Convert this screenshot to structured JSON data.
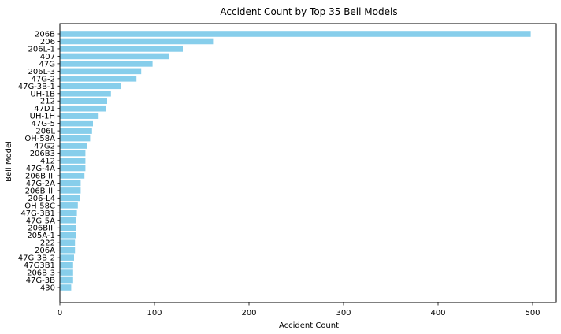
{
  "chart_data": {
    "type": "bar",
    "orientation": "horizontal",
    "title": "Accident Count by Top 35 Bell Models",
    "xlabel": "Accident Count",
    "ylabel": "Bell Model",
    "xlim": [
      0,
      525
    ],
    "xticks": [
      0,
      100,
      200,
      300,
      400,
      500
    ],
    "bar_color": "#87ceeb",
    "grid": false,
    "categories": [
      "206B",
      "206",
      "206L-1",
      "407",
      "47G",
      "206L-3",
      "47G-2",
      "47G-3B-1",
      "UH-1B",
      "212",
      "47D1",
      "UH-1H",
      "47G-5",
      "206L",
      "OH-58A",
      "47G2",
      "206B3",
      "412",
      "47G-4A",
      "206B III",
      "47G-2A",
      "206B-III",
      "206-L4",
      "OH-58C",
      "47G-3B1",
      "47G-5A",
      "206BIII",
      "205A-1",
      "222",
      "206A",
      "47G-3B-2",
      "47G3B1",
      "206B-3",
      "47G-3B",
      "430"
    ],
    "values": [
      498,
      162,
      130,
      115,
      98,
      86,
      81,
      65,
      54,
      50,
      49,
      41,
      35,
      34,
      32,
      29,
      27,
      27,
      27,
      26,
      22,
      22,
      21,
      19,
      18,
      17,
      17,
      17,
      16,
      16,
      15,
      14,
      14,
      14,
      12
    ]
  }
}
